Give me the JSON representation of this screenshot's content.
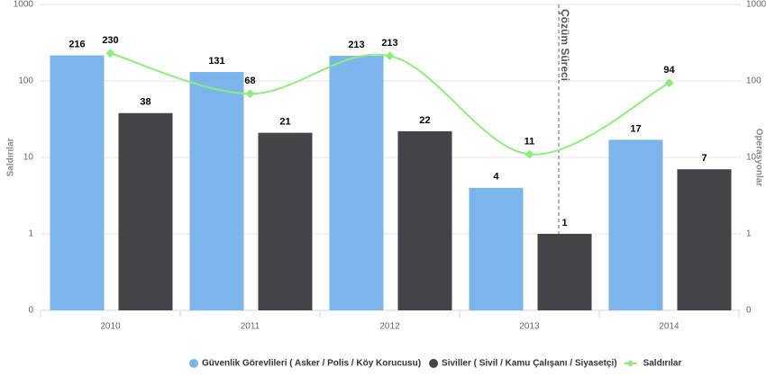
{
  "chart_data": {
    "type": "bar",
    "categories": [
      "2010",
      "2011",
      "2012",
      "2013",
      "2014"
    ],
    "series": [
      {
        "name": "Güvenlik Görevlileri ( Asker / Polis / Köy Korucusu)",
        "type": "bar",
        "color": "#7cb5ec",
        "axis": "y2",
        "values": [
          216,
          131,
          213,
          4,
          17
        ]
      },
      {
        "name": "Siviller ( Sivil / Kamu Çalışanı / Siyasetçi)",
        "type": "bar",
        "color": "#434348",
        "axis": "y2",
        "values": [
          38,
          21,
          22,
          1,
          7
        ]
      },
      {
        "name": "Saldırılar",
        "type": "line",
        "color": "#90ed7d",
        "values": [
          230,
          68,
          213,
          11,
          94
        ]
      }
    ],
    "ylabel": "Saldırılar",
    "y2label": "Operasyonlar",
    "log_scale": true,
    "ylim": [
      0.1,
      1000
    ],
    "yticks": [
      {
        "value": 0.1,
        "label": "0"
      },
      1,
      10,
      100,
      1000
    ],
    "y2lim": [
      0.1,
      1000
    ],
    "y2ticks": [
      {
        "value": 0.1,
        "label": "0"
      },
      1,
      10,
      100,
      1000
    ],
    "annotation": {
      "text": "Çözüm Süreci"
    },
    "grid": true,
    "legend": "bottom"
  }
}
